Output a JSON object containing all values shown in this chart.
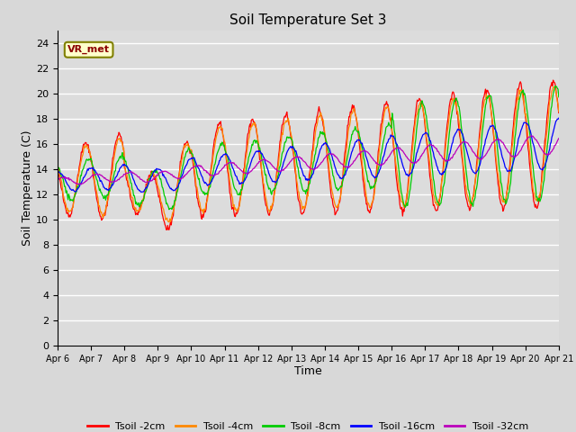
{
  "title": "Soil Temperature Set 3",
  "xlabel": "Time",
  "ylabel": "Soil Temperature (C)",
  "ylim": [
    0,
    25
  ],
  "yticks": [
    0,
    2,
    4,
    6,
    8,
    10,
    12,
    14,
    16,
    18,
    20,
    22,
    24
  ],
  "plot_bg_color": "#dcdcdc",
  "fig_bg_color": "#d8d8d8",
  "annotation_text": "VR_met",
  "series_colors": [
    "#ff0000",
    "#ff8800",
    "#00cc00",
    "#0000ff",
    "#bb00bb"
  ],
  "series_labels": [
    "Tsoil -2cm",
    "Tsoil -4cm",
    "Tsoil -8cm",
    "Tsoil -16cm",
    "Tsoil -32cm"
  ],
  "x_tick_labels": [
    "Apr 6",
    "Apr 7",
    "Apr 8",
    "Apr 9",
    "Apr 10",
    "Apr 11",
    "Apr 12",
    "Apr 13",
    "Apr 14",
    "Apr 15",
    "Apr 16",
    "Apr 17",
    "Apr 18",
    "Apr 19",
    "Apr 20",
    "Apr 21"
  ],
  "n_days": 15,
  "pts_per_day": 48
}
